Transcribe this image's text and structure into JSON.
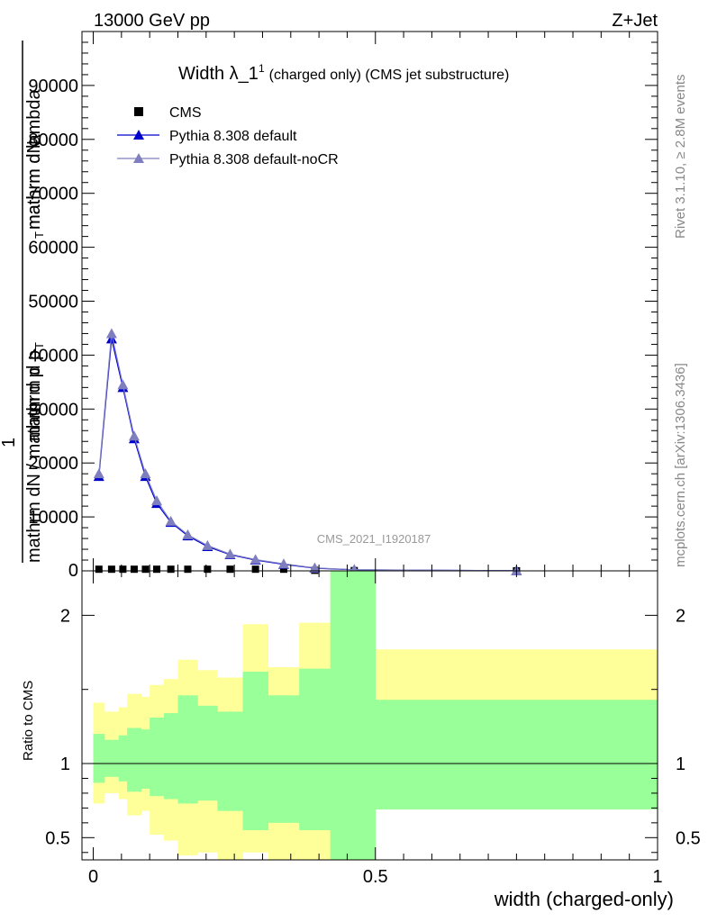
{
  "header": {
    "left": "13000 GeV pp",
    "right": "Z+Jet"
  },
  "side_labels": {
    "rivet": "Rivet 3.1.10, ≥ 2.8M events",
    "mcplots": "mcplots.cern.ch [arXiv:1306.3436]"
  },
  "top_panel": {
    "title_main": "Width λ_1",
    "title_sup": "1",
    "title_rest": "(charged only) (CMS jet substructure)",
    "watermark": "CMS_2021_I1920187",
    "ylabel_num_1": "mathrm d",
    "ylabel_num_2": "N",
    "ylabel_num_3": "mathrm d p",
    "ylabel_num_sub": "T",
    "ylabel_num_4": " mathrm d lambda",
    "ylabel_one": "1",
    "ylabel_den_1": "mathrm d",
    "ylabel_den_2": "N / mathrm d p",
    "ylabel_den_sub": "T"
  },
  "bottom_panel": {
    "ylabel": "Ratio to CMS",
    "xlabel": "width (charged-only)"
  },
  "legend": [
    {
      "label": "CMS",
      "marker": "square",
      "color": "#000000"
    },
    {
      "label": "Pythia 8.308 default",
      "marker": "triangle",
      "color": "#0000cc"
    },
    {
      "label": "Pythia 8.308 default-noCR",
      "marker": "triangle",
      "color": "#7f7fbf"
    }
  ],
  "chart_data": [
    {
      "type": "line",
      "xlim": [
        -0.02,
        1.0
      ],
      "ylim": [
        0,
        100000
      ],
      "y_ticks": [
        10000,
        20000,
        30000,
        40000,
        50000,
        60000,
        70000,
        80000,
        90000
      ],
      "y_tick_labels": [
        "10000",
        "20000",
        "30000",
        "40000",
        "50000",
        "60000",
        "70000",
        "80000",
        "90000"
      ],
      "y_zero_label": "0",
      "series": [
        {
          "name": "CMS",
          "color": "#000000",
          "marker": "square",
          "x": [
            0.01,
            0.0325,
            0.0525,
            0.0725,
            0.0925,
            0.1125,
            0.1375,
            0.1675,
            0.2025,
            0.2425,
            0.2875,
            0.3375,
            0.3925,
            0.4625,
            0.75
          ],
          "y": [
            300,
            300,
            300,
            300,
            300,
            300,
            300,
            300,
            300,
            300,
            300,
            300,
            100,
            50,
            10
          ]
        },
        {
          "name": "Pythia 8.308 default",
          "color": "#0000cc",
          "marker": "triangle",
          "x": [
            0.01,
            0.0325,
            0.0525,
            0.0725,
            0.0925,
            0.1125,
            0.1375,
            0.1675,
            0.2025,
            0.2425,
            0.2875,
            0.3375,
            0.3925,
            0.4625,
            0.75
          ],
          "y": [
            17500,
            43000,
            34000,
            24500,
            17500,
            12500,
            9000,
            6500,
            4500,
            3000,
            2000,
            1200,
            500,
            200,
            20
          ]
        },
        {
          "name": "Pythia 8.308 default-noCR",
          "color": "#7f7fbf",
          "marker": "triangle",
          "x": [
            0.01,
            0.0325,
            0.0525,
            0.0725,
            0.0925,
            0.1125,
            0.1375,
            0.1675,
            0.2025,
            0.2425,
            0.2875,
            0.3375,
            0.3925,
            0.4625,
            0.75
          ],
          "y": [
            18000,
            44000,
            34500,
            25000,
            18000,
            13000,
            9200,
            6700,
            4700,
            3100,
            2100,
            1300,
            550,
            220,
            20
          ]
        }
      ]
    },
    {
      "type": "area",
      "xlim": [
        -0.02,
        1.0
      ],
      "ylim": [
        0.35,
        2.3
      ],
      "x_ticks": [
        0,
        0.5,
        1
      ],
      "x_tick_labels": [
        "0",
        "0.5",
        "1"
      ],
      "y_ticks": [
        0.5,
        1,
        2
      ],
      "y_tick_labels": [
        "0.5",
        "1",
        "2"
      ],
      "reference_line": 1,
      "bin_edges": [
        0.0,
        0.02,
        0.045,
        0.06,
        0.085,
        0.1,
        0.125,
        0.15,
        0.185,
        0.22,
        0.265,
        0.31,
        0.365,
        0.42,
        0.5,
        1.0
      ],
      "series": [
        {
          "name": "",
          "color": "#ffff99",
          "lower": [
            0.73,
            0.8,
            0.76,
            0.65,
            0.68,
            0.52,
            0.48,
            0.38,
            0.4,
            0.33,
            0.4,
            0.35,
            0.33,
            0.3,
            0.69
          ],
          "upper": [
            1.41,
            1.35,
            1.38,
            1.47,
            1.45,
            1.53,
            1.57,
            1.7,
            1.63,
            1.58,
            1.94,
            1.65,
            1.95,
            2.3,
            1.77
          ]
        },
        {
          "name": "",
          "color": "#99ff99",
          "lower": [
            0.87,
            0.91,
            0.88,
            0.81,
            0.83,
            0.78,
            0.76,
            0.73,
            0.75,
            0.68,
            0.55,
            0.6,
            0.55,
            0.3,
            0.69
          ],
          "upper": [
            1.2,
            1.16,
            1.19,
            1.24,
            1.23,
            1.31,
            1.34,
            1.46,
            1.39,
            1.35,
            1.62,
            1.46,
            1.64,
            2.3,
            1.43
          ]
        }
      ]
    }
  ]
}
